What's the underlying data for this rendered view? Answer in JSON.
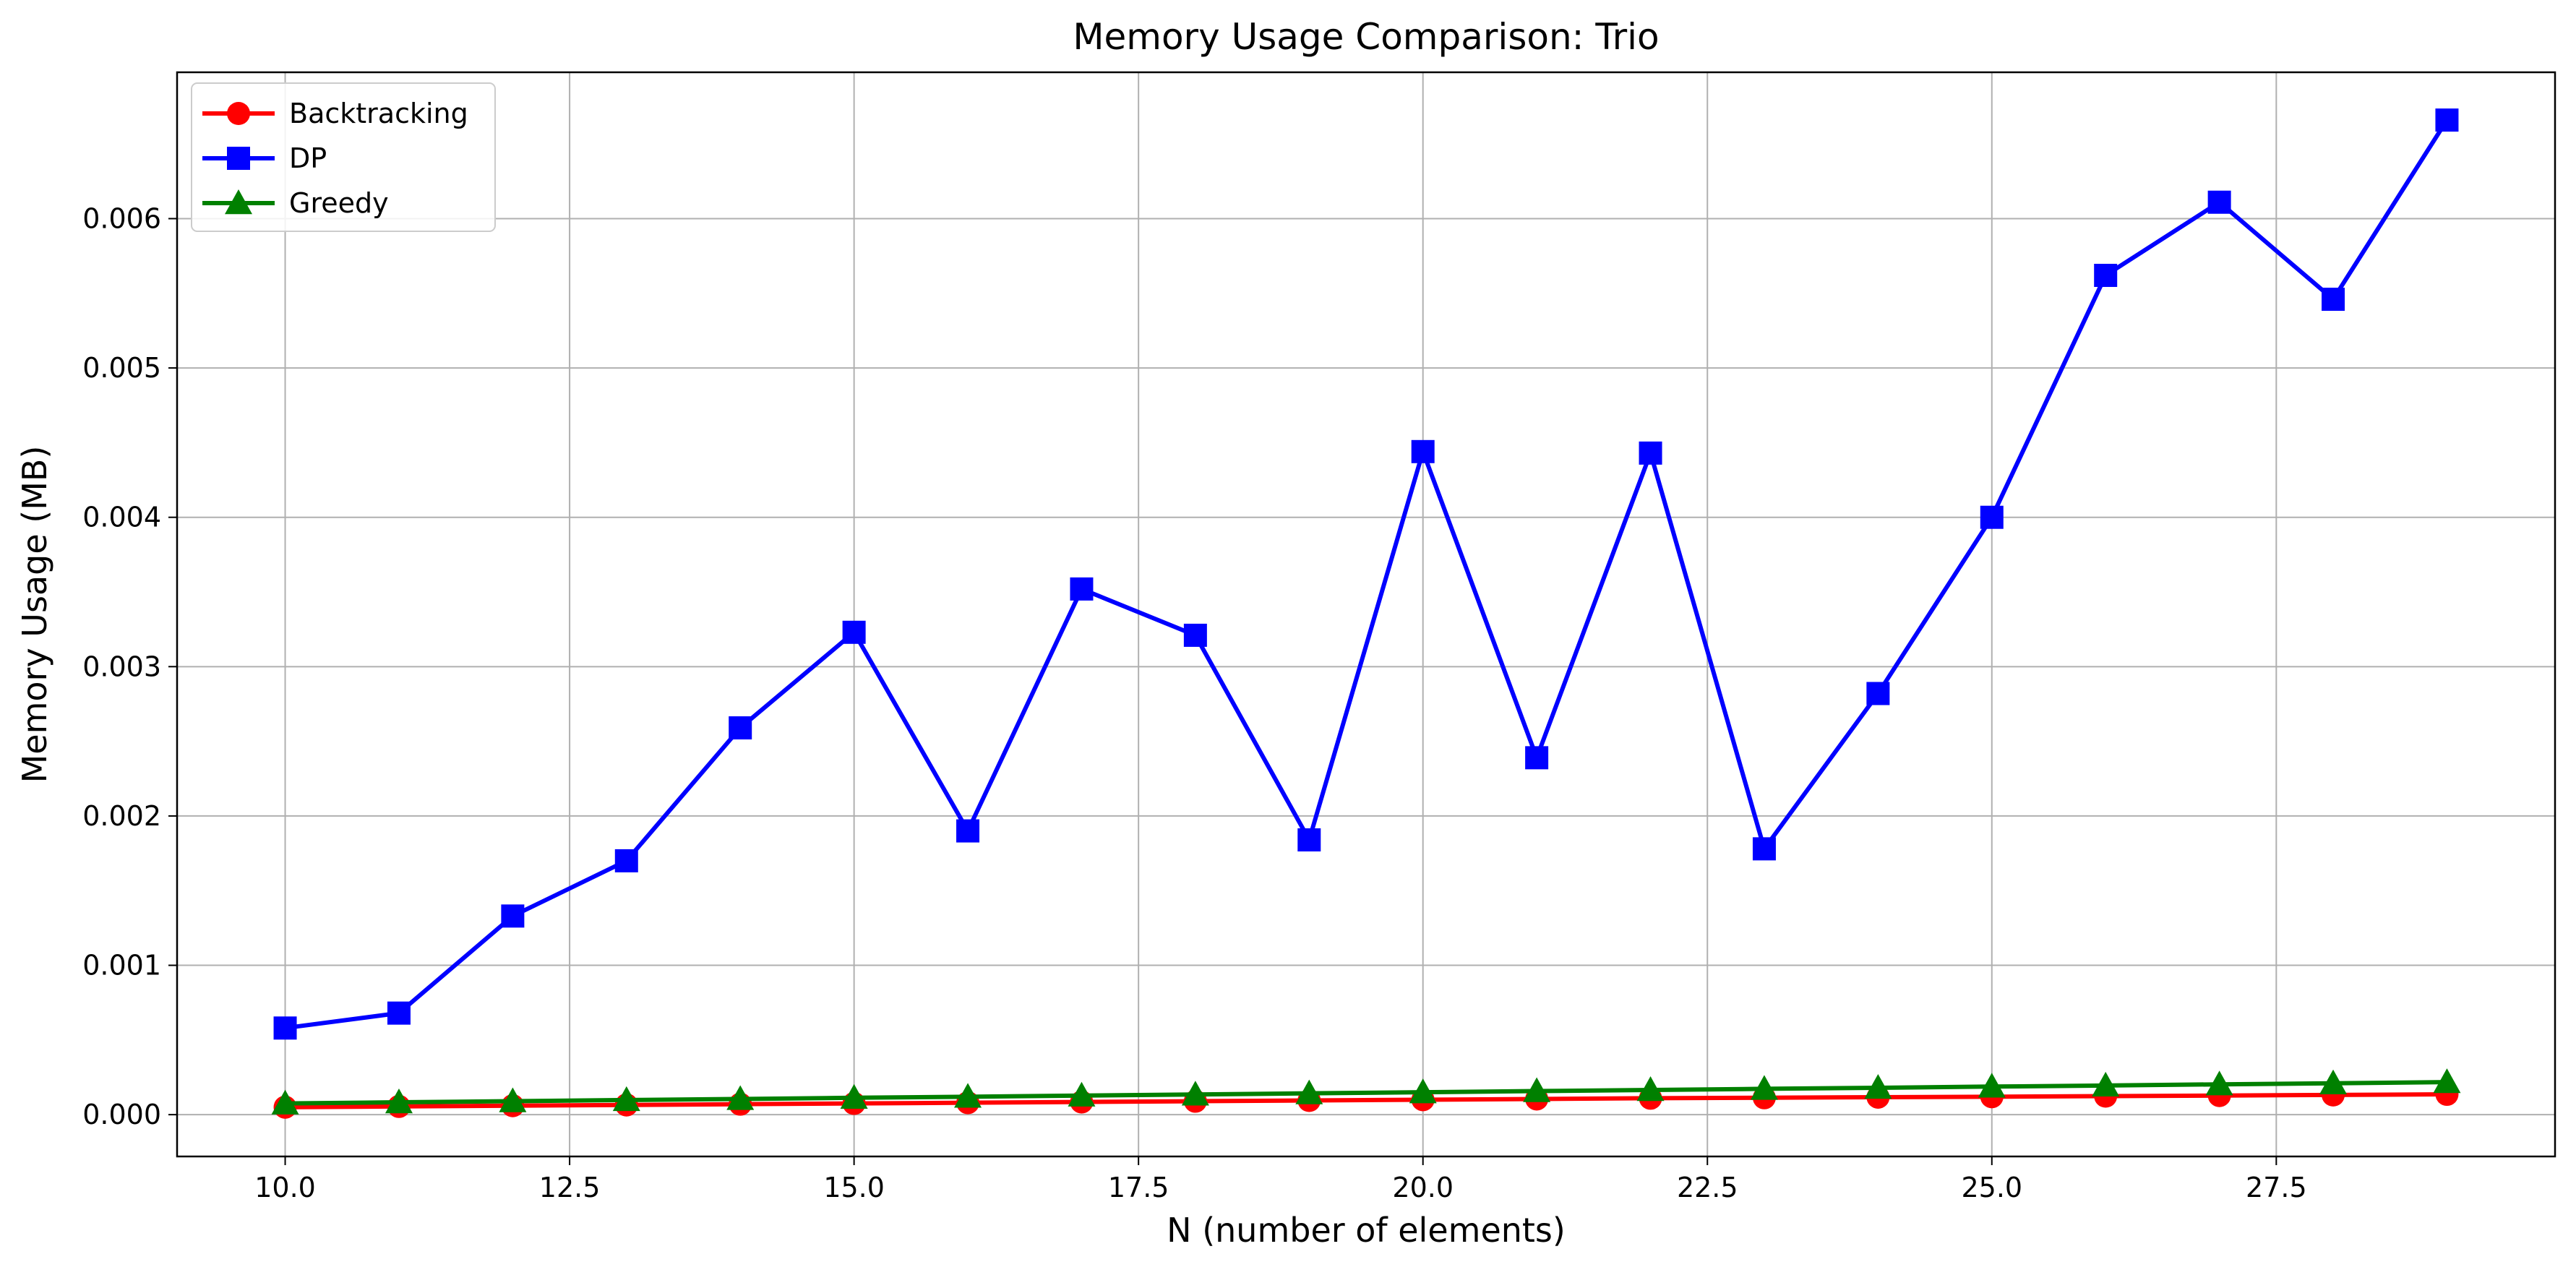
{
  "chart_data": {
    "type": "line",
    "title": "Memory Usage Comparison: Trio",
    "xlabel": "N (number of elements)",
    "ylabel": "Memory Usage (MB)",
    "xlim": [
      9.05,
      29.95
    ],
    "ylim": [
      -0.00028,
      0.00698
    ],
    "xticks": [
      "10.0",
      "12.5",
      "15.0",
      "17.5",
      "20.0",
      "22.5",
      "25.0",
      "27.5"
    ],
    "yticks": [
      "0.000",
      "0.001",
      "0.002",
      "0.003",
      "0.004",
      "0.005",
      "0.006"
    ],
    "grid": true,
    "legend_position": "top-left",
    "x": [
      10,
      11,
      12,
      13,
      14,
      15,
      16,
      17,
      18,
      19,
      20,
      21,
      22,
      23,
      24,
      25,
      26,
      27,
      28,
      29
    ],
    "series": [
      {
        "name": "Backtracking",
        "color": "#ff0000",
        "marker": "circle",
        "values": [
          5e-05,
          5.5e-05,
          6e-05,
          6.5e-05,
          7e-05,
          7.5e-05,
          8e-05,
          8.5e-05,
          9e-05,
          9.5e-05,
          0.0001,
          0.000105,
          0.00011,
          0.000113,
          0.000117,
          0.00012,
          0.000124,
          0.000128,
          0.000132,
          0.000136
        ]
      },
      {
        "name": "DP",
        "color": "#0000ff",
        "marker": "square",
        "values": [
          0.00058,
          0.00068,
          0.00133,
          0.0017,
          0.00259,
          0.00323,
          0.0019,
          0.00352,
          0.00321,
          0.00184,
          0.00444,
          0.00239,
          0.00443,
          0.00178,
          0.00282,
          0.004,
          0.00562,
          0.00611,
          0.00546,
          0.00666
        ]
      },
      {
        "name": "Greedy",
        "color": "#008000",
        "marker": "triangle",
        "values": [
          7.5e-05,
          8.3e-05,
          9e-05,
          9.8e-05,
          0.000105,
          0.000113,
          0.00012,
          0.000128,
          0.000135,
          0.000143,
          0.00015,
          0.000158,
          0.000165,
          0.000173,
          0.00018,
          0.000188,
          0.000195,
          0.000203,
          0.00021,
          0.000218
        ]
      }
    ]
  }
}
